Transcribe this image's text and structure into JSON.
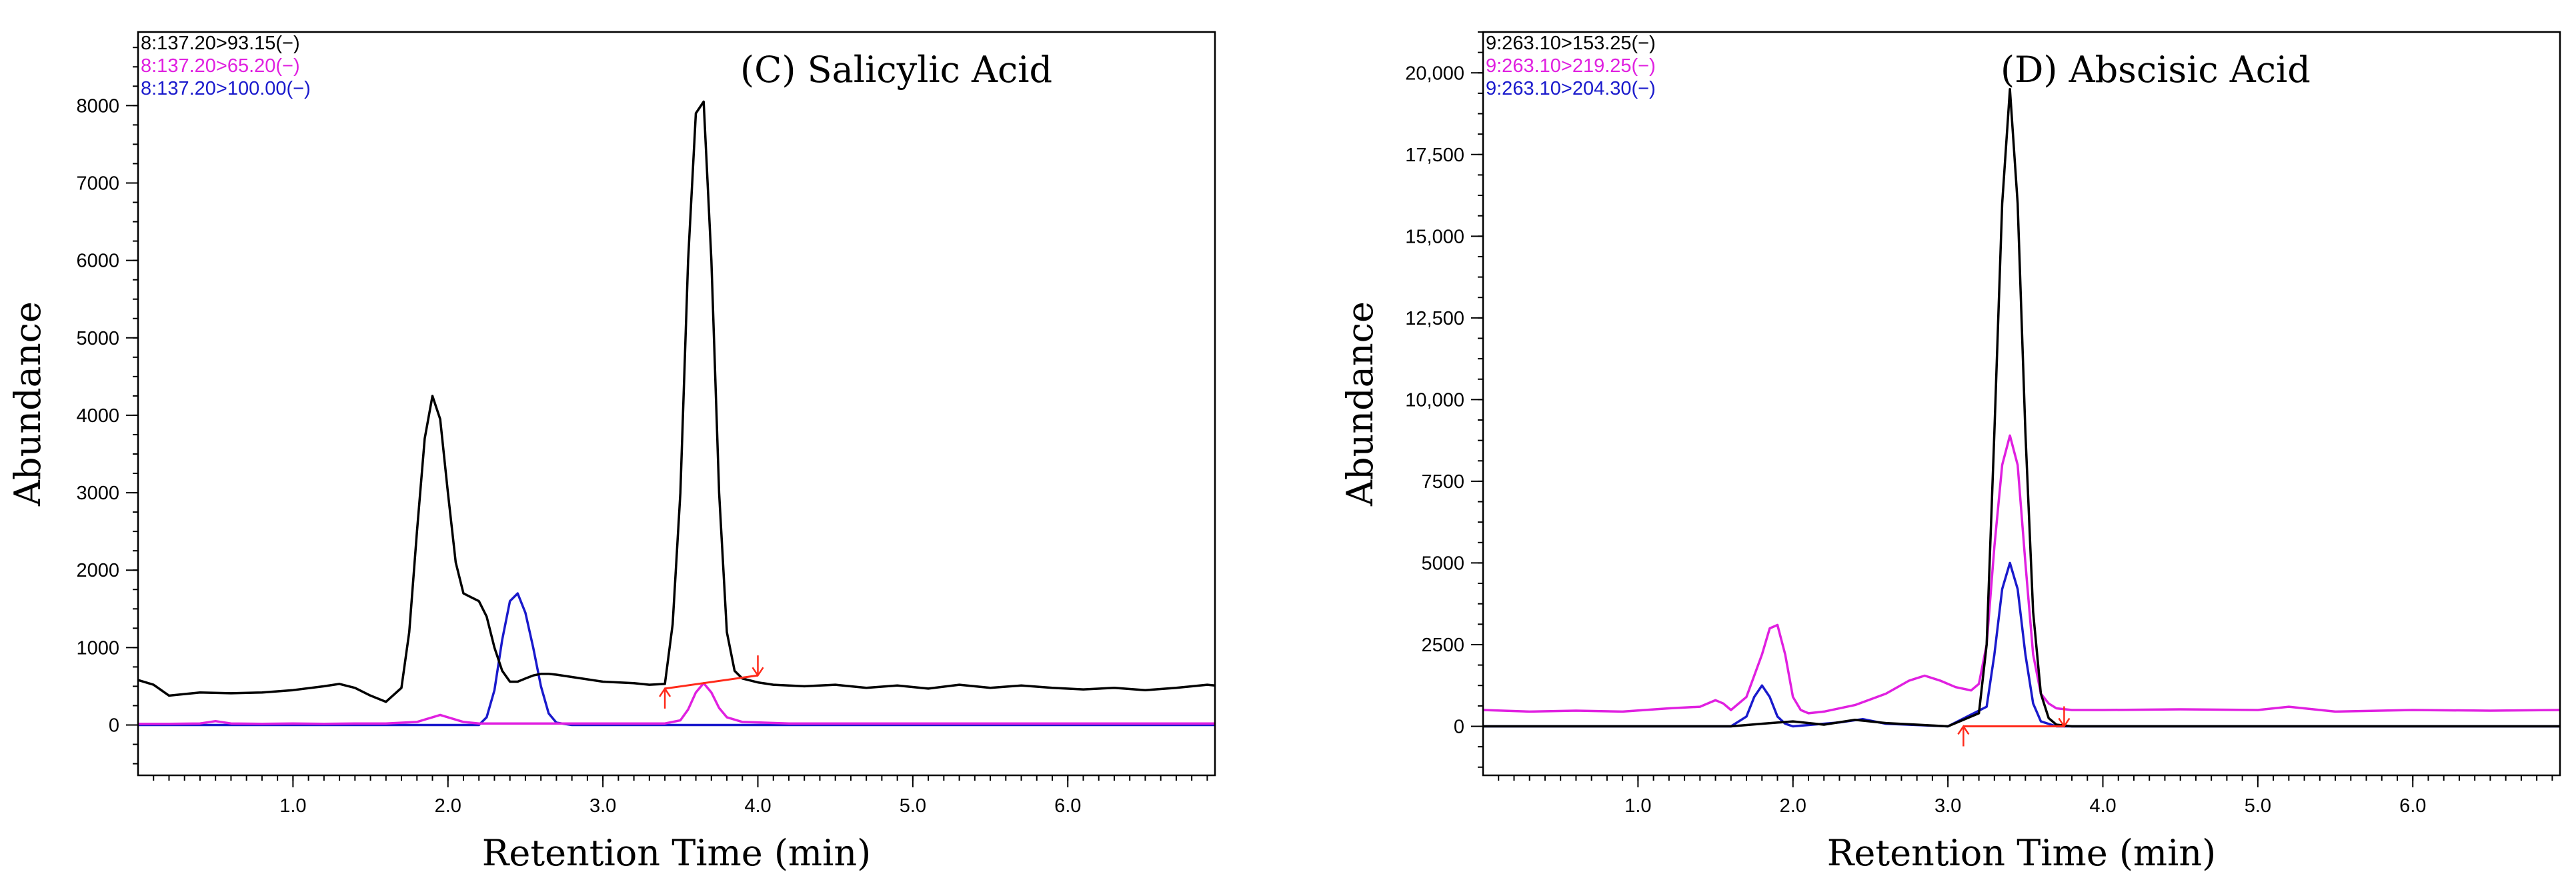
{
  "chart_data": [
    {
      "type": "line",
      "title": "(C) Salicylic Acid",
      "xlabel": "Retention Time (min)",
      "ylabel": "Abundance",
      "xlim": [
        0.0,
        6.95
      ],
      "ylim": [
        -650,
        8950
      ],
      "xticks": [
        1.0,
        2.0,
        3.0,
        4.0,
        5.0,
        6.0
      ],
      "xtick_labels": [
        "1.0",
        "2.0",
        "3.0",
        "4.0",
        "5.0",
        "6.0"
      ],
      "yticks": [
        0,
        1000,
        2000,
        3000,
        4000,
        5000,
        6000,
        7000,
        8000
      ],
      "ytick_labels": [
        "0",
        "1000",
        "2000",
        "3000",
        "4000",
        "5000",
        "6000",
        "7000",
        "8000"
      ],
      "legend_position": "top-left",
      "grid": false,
      "series": [
        {
          "name": "8:137.20>93.15(−)",
          "color": "#000000",
          "x": [
            0.0,
            0.1,
            0.2,
            0.4,
            0.6,
            0.8,
            1.0,
            1.2,
            1.3,
            1.4,
            1.5,
            1.6,
            1.7,
            1.75,
            1.8,
            1.85,
            1.9,
            1.95,
            2.0,
            2.05,
            2.1,
            2.15,
            2.2,
            2.25,
            2.3,
            2.35,
            2.4,
            2.45,
            2.5,
            2.55,
            2.6,
            2.65,
            2.7,
            2.8,
            2.9,
            3.0,
            3.1,
            3.2,
            3.3,
            3.4,
            3.45,
            3.5,
            3.55,
            3.6,
            3.65,
            3.7,
            3.75,
            3.8,
            3.85,
            3.9,
            4.0,
            4.1,
            4.3,
            4.5,
            4.7,
            4.9,
            5.1,
            5.3,
            5.5,
            5.7,
            5.9,
            6.1,
            6.3,
            6.5,
            6.7,
            6.9,
            6.95
          ],
          "y": [
            580,
            520,
            380,
            420,
            410,
            420,
            450,
            500,
            530,
            480,
            380,
            300,
            480,
            1200,
            2500,
            3700,
            4250,
            3950,
            3000,
            2100,
            1700,
            1650,
            1600,
            1400,
            1000,
            700,
            560,
            560,
            600,
            640,
            660,
            660,
            650,
            620,
            590,
            560,
            550,
            540,
            520,
            530,
            1300,
            3000,
            6000,
            7900,
            8050,
            6000,
            3000,
            1200,
            700,
            600,
            550,
            520,
            500,
            520,
            480,
            510,
            470,
            520,
            480,
            510,
            480,
            460,
            480,
            450,
            480,
            520,
            510
          ]
        },
        {
          "name": "8:137.20>65.20(−)",
          "color": "#e020e0",
          "x": [
            0.0,
            0.2,
            0.4,
            0.5,
            0.6,
            0.8,
            1.0,
            1.2,
            1.4,
            1.6,
            1.8,
            1.9,
            1.95,
            2.0,
            2.1,
            2.2,
            2.6,
            3.0,
            3.4,
            3.5,
            3.55,
            3.6,
            3.65,
            3.7,
            3.75,
            3.8,
            3.9,
            4.2,
            5.0,
            6.0,
            6.95
          ],
          "y": [
            15,
            15,
            20,
            50,
            20,
            15,
            20,
            15,
            20,
            20,
            40,
            100,
            130,
            100,
            40,
            20,
            20,
            20,
            20,
            60,
            200,
            420,
            540,
            420,
            220,
            100,
            40,
            20,
            20,
            20,
            20
          ]
        },
        {
          "name": "8:137.20>100.00(−)",
          "color": "#1a1acc",
          "x": [
            0.0,
            1.0,
            2.0,
            2.2,
            2.25,
            2.3,
            2.35,
            2.4,
            2.45,
            2.5,
            2.55,
            2.6,
            2.65,
            2.7,
            2.8,
            3.0,
            4.0,
            5.0,
            6.0,
            6.95
          ],
          "y": [
            0,
            0,
            0,
            0,
            100,
            450,
            1100,
            1600,
            1700,
            1450,
            1000,
            500,
            150,
            30,
            0,
            0,
            0,
            0,
            0,
            0
          ]
        }
      ],
      "integration_baseline": {
        "color": "#ff2a1a",
        "start": [
          3.4,
          470
        ],
        "end": [
          4.0,
          640
        ]
      }
    },
    {
      "type": "line",
      "title": "(D) Abscisic Acid",
      "xlabel": "Retention Time (min)",
      "ylabel": "Abundance",
      "xlim": [
        0.0,
        6.95
      ],
      "ylim": [
        -1500,
        21250
      ],
      "xticks": [
        1.0,
        2.0,
        3.0,
        4.0,
        5.0,
        6.0
      ],
      "xtick_labels": [
        "1.0",
        "2.0",
        "3.0",
        "4.0",
        "5.0",
        "6.0"
      ],
      "yticks": [
        0,
        2500,
        5000,
        7500,
        10000,
        12500,
        15000,
        17500,
        20000
      ],
      "ytick_labels": [
        "0",
        "2500",
        "5000",
        "7500",
        "10,000",
        "12,500",
        "15,000",
        "17,500",
        "20,000"
      ],
      "legend_position": "top-left",
      "grid": false,
      "series": [
        {
          "name": "9:263.10>153.25(−)",
          "color": "#000000",
          "x": [
            0.0,
            1.0,
            1.6,
            1.8,
            2.0,
            2.2,
            2.4,
            2.6,
            2.8,
            3.0,
            3.2,
            3.25,
            3.3,
            3.35,
            3.4,
            3.45,
            3.5,
            3.55,
            3.6,
            3.65,
            3.7,
            3.8,
            4.0,
            5.0,
            6.0,
            6.95
          ],
          "y": [
            0,
            0,
            0,
            80,
            150,
            50,
            200,
            100,
            50,
            0,
            400,
            2500,
            9000,
            16000,
            19500,
            16000,
            9000,
            3500,
            1000,
            250,
            50,
            0,
            0,
            0,
            0,
            0
          ]
        },
        {
          "name": "9:263.10>219.25(−)",
          "color": "#e020e0",
          "x": [
            0.0,
            0.3,
            0.6,
            0.9,
            1.2,
            1.4,
            1.5,
            1.55,
            1.6,
            1.7,
            1.8,
            1.85,
            1.9,
            1.95,
            2.0,
            2.05,
            2.1,
            2.2,
            2.4,
            2.6,
            2.75,
            2.85,
            2.95,
            3.05,
            3.15,
            3.2,
            3.25,
            3.3,
            3.35,
            3.4,
            3.45,
            3.5,
            3.55,
            3.6,
            3.65,
            3.7,
            3.8,
            4.0,
            4.5,
            5.0,
            5.2,
            5.5,
            6.0,
            6.5,
            6.95
          ],
          "y": [
            500,
            450,
            480,
            450,
            550,
            600,
            800,
            700,
            500,
            900,
            2200,
            3000,
            3100,
            2200,
            900,
            500,
            400,
            450,
            650,
            1000,
            1400,
            1550,
            1400,
            1200,
            1100,
            1300,
            2500,
            5500,
            8000,
            8900,
            8000,
            5000,
            2200,
            1000,
            700,
            550,
            500,
            500,
            520,
            500,
            600,
            450,
            500,
            480,
            500
          ]
        },
        {
          "name": "9:263.10>204.30(−)",
          "color": "#1a1acc",
          "x": [
            0.0,
            1.0,
            1.6,
            1.7,
            1.75,
            1.8,
            1.85,
            1.9,
            1.95,
            2.0,
            2.3,
            2.45,
            2.6,
            3.0,
            3.25,
            3.3,
            3.35,
            3.4,
            3.45,
            3.5,
            3.55,
            3.6,
            3.7,
            4.0,
            5.0,
            6.0,
            6.95
          ],
          "y": [
            0,
            0,
            0,
            300,
            900,
            1250,
            900,
            300,
            80,
            0,
            120,
            220,
            80,
            0,
            600,
            2200,
            4200,
            5000,
            4200,
            2200,
            700,
            150,
            0,
            0,
            0,
            0,
            0
          ]
        }
      ],
      "integration_baseline": {
        "color": "#ff2a1a",
        "start": [
          3.1,
          0
        ],
        "end": [
          3.75,
          0
        ]
      }
    }
  ]
}
